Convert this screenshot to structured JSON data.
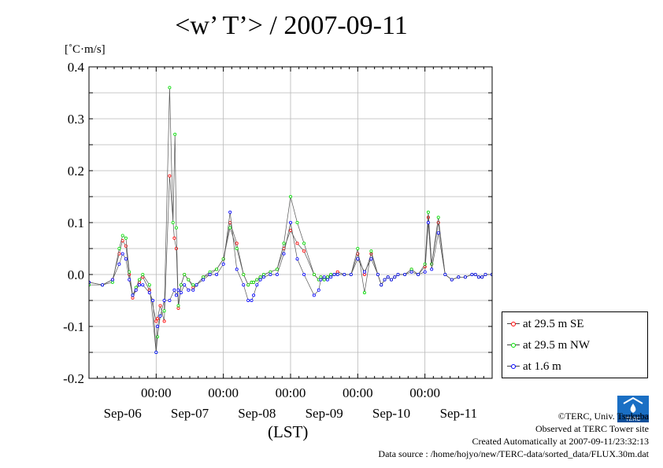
{
  "chart_data": {
    "type": "line",
    "title": "<w’ T’> / 2007-09-11",
    "unit_label": "[˚C·m/s]",
    "xlabel": "(LST)",
    "ylim": [
      -0.2,
      0.4
    ],
    "y_ticks": [
      "0.4",
      "0.3",
      "0.2",
      "0.1",
      "0.0",
      "-0.1",
      "-0.2"
    ],
    "x_time_ticks": [
      "00:00",
      "00:00",
      "00:00",
      "00:00",
      "00:00"
    ],
    "x_date_ticks": [
      "Sep-06",
      "Sep-07",
      "Sep-08",
      "Sep-09",
      "Sep-10",
      "Sep-11"
    ],
    "x_unit": "day",
    "x_range": [
      5.0,
      11.0
    ],
    "grid": true,
    "legend_position": "bottom-right outside",
    "series": [
      {
        "name": "at 29.5 m SE",
        "color": "#ff0000",
        "x": [
          5.0,
          5.2,
          5.35,
          5.45,
          5.5,
          5.55,
          5.6,
          5.65,
          5.7,
          5.75,
          5.8,
          5.9,
          6.0,
          6.02,
          6.06,
          6.12,
          6.2,
          6.27,
          6.3,
          6.33,
          6.37,
          6.42,
          6.48,
          6.55,
          6.6,
          6.7,
          6.8,
          6.9,
          7.0,
          7.1,
          7.2,
          7.3,
          7.37,
          7.42,
          7.45,
          7.5,
          7.55,
          7.6,
          7.7,
          7.8,
          7.9,
          8.0,
          8.1,
          8.2,
          8.35,
          8.42,
          8.45,
          8.5,
          8.55,
          8.6,
          8.65,
          8.7,
          8.8,
          8.9,
          9.0,
          9.1,
          9.2,
          9.3,
          9.35,
          9.4,
          9.45,
          9.5,
          9.55,
          9.6,
          9.7,
          9.8,
          9.9,
          10.0,
          10.05,
          10.1,
          10.2,
          10.3,
          10.4,
          10.5,
          10.6,
          10.7,
          10.75,
          10.8,
          10.85,
          10.9,
          11.0
        ],
        "y": [
          -0.015,
          -0.02,
          -0.01,
          0.04,
          0.065,
          0.055,
          0.0,
          -0.045,
          -0.03,
          -0.015,
          -0.005,
          -0.03,
          -0.09,
          -0.085,
          -0.06,
          -0.09,
          0.19,
          0.07,
          0.05,
          -0.065,
          -0.02,
          0.0,
          -0.01,
          -0.025,
          -0.02,
          -0.005,
          0.0,
          0.01,
          0.03,
          0.1,
          0.06,
          0.0,
          -0.02,
          -0.015,
          -0.015,
          -0.01,
          -0.005,
          0.0,
          0.005,
          0.01,
          0.05,
          0.085,
          0.06,
          0.045,
          0.0,
          -0.01,
          -0.005,
          -0.01,
          -0.005,
          0.0,
          0.0,
          0.005,
          0.0,
          0.0,
          0.04,
          0.0,
          0.04,
          0.0,
          -0.02,
          -0.01,
          -0.005,
          -0.01,
          -0.005,
          0.0,
          0.0,
          0.01,
          0.0,
          0.015,
          0.11,
          0.02,
          0.1,
          0.0,
          -0.01,
          -0.005,
          -0.005,
          0.0,
          0.0,
          -0.005,
          -0.005,
          0.0,
          0.0
        ]
      },
      {
        "name": "at 29.5 m NW",
        "color": "#00dd00",
        "x": [
          5.0,
          5.2,
          5.35,
          5.45,
          5.5,
          5.55,
          5.6,
          5.65,
          5.7,
          5.75,
          5.8,
          5.9,
          6.0,
          6.02,
          6.06,
          6.12,
          6.2,
          6.25,
          6.28,
          6.3,
          6.33,
          6.37,
          6.42,
          6.48,
          6.55,
          6.6,
          6.7,
          6.8,
          6.9,
          7.0,
          7.1,
          7.2,
          7.3,
          7.37,
          7.42,
          7.45,
          7.5,
          7.55,
          7.6,
          7.7,
          7.8,
          7.9,
          8.0,
          8.1,
          8.2,
          8.35,
          8.42,
          8.45,
          8.5,
          8.55,
          8.6,
          8.65,
          8.7,
          8.8,
          8.9,
          9.0,
          9.1,
          9.2,
          9.3,
          9.35,
          9.4,
          9.45,
          9.5,
          9.55,
          9.6,
          9.7,
          9.8,
          9.9,
          10.0,
          10.05,
          10.1,
          10.2,
          10.3,
          10.4,
          10.5,
          10.6,
          10.7,
          10.75,
          10.8,
          10.85,
          10.9,
          11.0
        ],
        "y": [
          -0.02,
          -0.02,
          -0.015,
          0.05,
          0.075,
          0.07,
          0.005,
          -0.04,
          -0.025,
          -0.01,
          0.0,
          -0.02,
          -0.15,
          -0.12,
          -0.08,
          -0.07,
          0.36,
          0.1,
          0.27,
          0.09,
          -0.06,
          -0.02,
          0.0,
          -0.01,
          -0.02,
          -0.02,
          -0.005,
          0.005,
          0.01,
          0.03,
          0.09,
          0.05,
          0.0,
          -0.02,
          -0.015,
          -0.015,
          -0.01,
          -0.005,
          0.0,
          0.005,
          0.01,
          0.06,
          0.15,
          0.1,
          0.06,
          0.0,
          -0.01,
          -0.005,
          -0.01,
          -0.005,
          0.0,
          0.0,
          0.0,
          0.0,
          0.0,
          0.05,
          -0.035,
          0.045,
          0.0,
          -0.02,
          -0.01,
          -0.005,
          -0.01,
          -0.005,
          0.0,
          0.0,
          0.01,
          0.0,
          0.02,
          0.12,
          0.02,
          0.11,
          0.0,
          -0.01,
          -0.005,
          -0.005,
          0.0,
          0.0,
          -0.005,
          -0.005,
          0.0,
          0.0
        ]
      },
      {
        "name": "at 1.6 m",
        "color": "#0000ff",
        "x": [
          5.0,
          5.2,
          5.35,
          5.45,
          5.5,
          5.55,
          5.6,
          5.65,
          5.7,
          5.75,
          5.8,
          5.9,
          5.95,
          6.0,
          6.02,
          6.06,
          6.12,
          6.2,
          6.27,
          6.3,
          6.33,
          6.37,
          6.42,
          6.48,
          6.55,
          6.6,
          6.7,
          6.8,
          6.9,
          7.0,
          7.1,
          7.2,
          7.3,
          7.37,
          7.42,
          7.45,
          7.5,
          7.55,
          7.6,
          7.7,
          7.8,
          7.9,
          8.0,
          8.1,
          8.2,
          8.35,
          8.42,
          8.45,
          8.5,
          8.55,
          8.6,
          8.65,
          8.7,
          8.8,
          8.9,
          9.0,
          9.1,
          9.2,
          9.3,
          9.35,
          9.4,
          9.45,
          9.5,
          9.55,
          9.6,
          9.7,
          9.8,
          9.9,
          10.0,
          10.05,
          10.1,
          10.2,
          10.3,
          10.4,
          10.5,
          10.6,
          10.7,
          10.75,
          10.8,
          10.85,
          10.9,
          11.0
        ],
        "y": [
          -0.015,
          -0.02,
          -0.01,
          0.02,
          0.04,
          0.03,
          -0.01,
          -0.04,
          -0.03,
          -0.02,
          -0.02,
          -0.035,
          -0.05,
          -0.15,
          -0.1,
          -0.08,
          -0.05,
          -0.05,
          -0.03,
          -0.04,
          -0.03,
          -0.035,
          -0.02,
          -0.03,
          -0.03,
          -0.02,
          -0.01,
          0.0,
          0.0,
          0.02,
          0.12,
          0.01,
          -0.02,
          -0.05,
          -0.05,
          -0.04,
          -0.02,
          -0.01,
          -0.005,
          0.0,
          0.0,
          0.04,
          0.1,
          0.03,
          0.0,
          -0.04,
          -0.03,
          -0.01,
          -0.005,
          -0.01,
          -0.005,
          0.0,
          0.0,
          0.0,
          0.0,
          0.03,
          0.005,
          0.03,
          0.0,
          -0.02,
          -0.01,
          -0.005,
          -0.01,
          -0.005,
          0.0,
          0.0,
          0.005,
          0.0,
          0.005,
          0.1,
          0.01,
          0.08,
          0.0,
          -0.01,
          -0.005,
          -0.005,
          0.0,
          0.0,
          -0.005,
          -0.005,
          0.0,
          0.0
        ]
      }
    ]
  },
  "credits": {
    "copyright": "©TERC, Univ. Tsukuba",
    "observed": "Observed at TERC Tower site",
    "created": "Created Automatically at 2007-09-11/23:32:13",
    "source": "Data source : /home/hojyo/new/TERC-data/sorted_data/FLUX.30m.dat"
  },
  "logo_text": "TERC"
}
